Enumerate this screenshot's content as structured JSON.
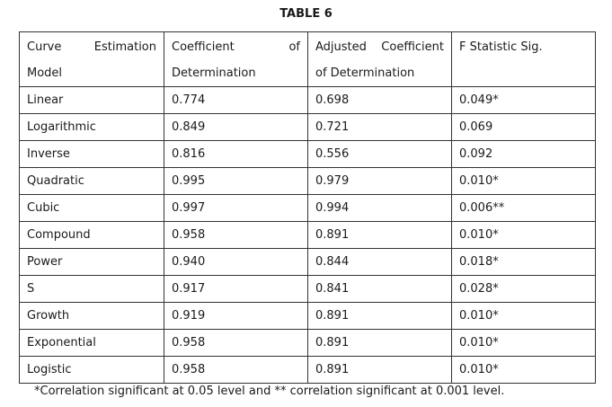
{
  "title": "TABLE 6",
  "headers": {
    "col1_line1": "Curve Estimation",
    "col1_line2": "Model",
    "col2_line1": "Coefficient of",
    "col2_line2": "Determination",
    "col3_line1": "Adjusted Coefficient",
    "col3_line2": "of Determination",
    "col4_line1": "F Statistic Sig."
  },
  "rows": [
    {
      "model": "Linear",
      "r2": "0.774",
      "adj_r2": "0.698",
      "f_sig": "0.049*"
    },
    {
      "model": "Logarithmic",
      "r2": "0.849",
      "adj_r2": "0.721",
      "f_sig": "0.069"
    },
    {
      "model": "Inverse",
      "r2": "0.816",
      "adj_r2": "0.556",
      "f_sig": "0.092"
    },
    {
      "model": "Quadratic",
      "r2": "0.995",
      "adj_r2": "0.979",
      "f_sig": "0.010*"
    },
    {
      "model": "Cubic",
      "r2": "0.997",
      "adj_r2": "0.994",
      "f_sig": "0.006**"
    },
    {
      "model": "Compound",
      "r2": "0.958",
      "adj_r2": "0.891",
      "f_sig": "0.010*"
    },
    {
      "model": "Power",
      "r2": "0.940",
      "adj_r2": "0.844",
      "f_sig": "0.018*"
    },
    {
      "model": "S",
      "r2": "0.917",
      "adj_r2": "0.841",
      "f_sig": "0.028*"
    },
    {
      "model": "Growth",
      "r2": "0.919",
      "adj_r2": "0.891",
      "f_sig": "0.010*"
    },
    {
      "model": "Exponential",
      "r2": "0.958",
      "adj_r2": "0.891",
      "f_sig": "0.010*"
    },
    {
      "model": "Logistic",
      "r2": "0.958",
      "adj_r2": "0.891",
      "f_sig": "0.010*"
    }
  ],
  "footnote": "*Correlation significant at 0.05 level and ** correlation significant at 0.001 level."
}
